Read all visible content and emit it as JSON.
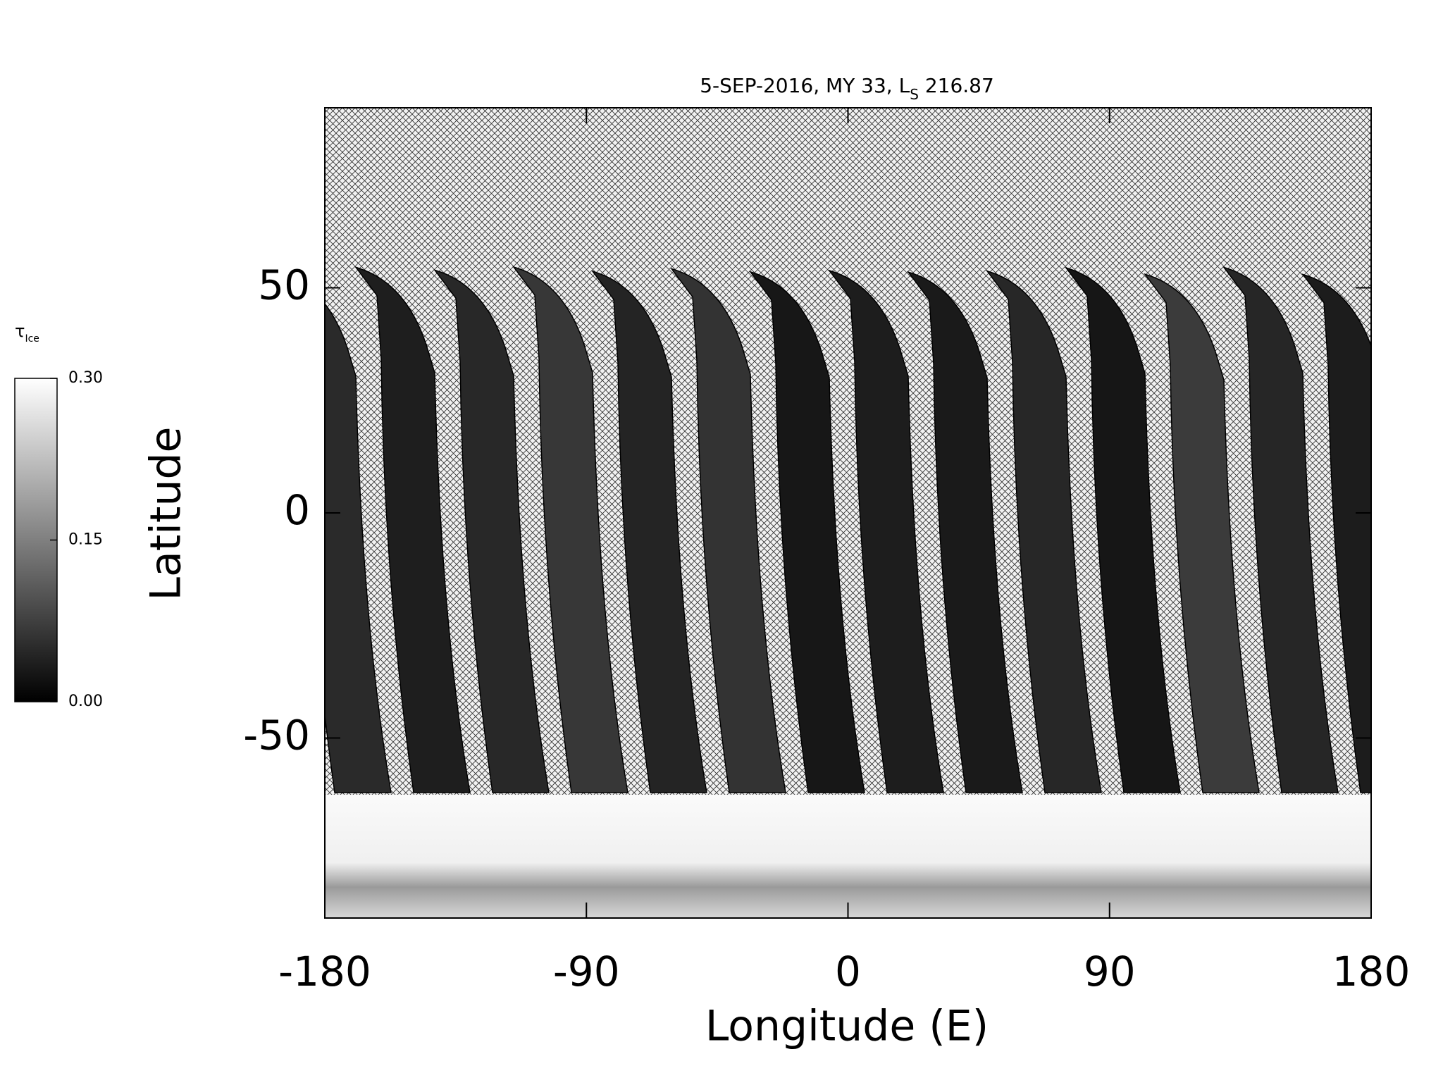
{
  "chart_data": {
    "type": "map",
    "title": [
      "5-SEP-2016, MY 33,  L",
      "S",
      " 216.87"
    ],
    "xlabel": "Longitude (E)",
    "ylabel": "Latitude",
    "xlim": [
      -180,
      180
    ],
    "xticks": [
      -180,
      -90,
      0,
      90,
      180
    ],
    "ylim": [
      -90,
      90
    ],
    "yticks": [
      -50,
      0,
      50
    ],
    "colorbar": {
      "label": [
        "τ",
        "Ice"
      ],
      "clim": [
        0,
        0.3
      ],
      "colors": [
        "#000000",
        "#ffffff"
      ],
      "ticks": [
        {
          "value": 0,
          "label": "0.00"
        },
        {
          "value": 0.15,
          "label": "0.15"
        },
        {
          "value": 0.3,
          "label": "0.30"
        }
      ]
    }
  }
}
